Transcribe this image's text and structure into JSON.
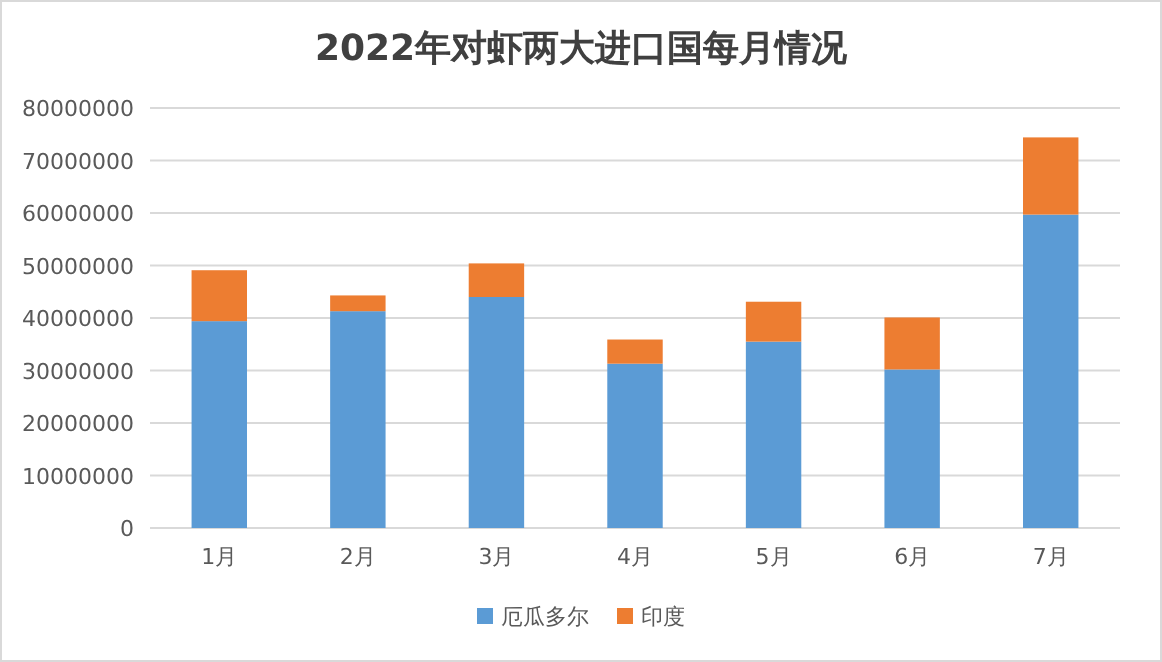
{
  "chart_data": {
    "type": "bar",
    "title": "2022年对虾两大进口国每月情况",
    "stacked": true,
    "grid": "y",
    "legend": "bottom",
    "categories": [
      "1月",
      "2月",
      "3月",
      "4月",
      "5月",
      "6月",
      "7月"
    ],
    "series": [
      {
        "name": "厄瓜多尔",
        "color": "#5b9bd5",
        "values": [
          39400000,
          41300000,
          44000000,
          31300000,
          35500000,
          30200000,
          59700000
        ]
      },
      {
        "name": "印度",
        "color": "#ed7d31",
        "values": [
          9700000,
          3000000,
          6400000,
          4600000,
          7600000,
          9900000,
          14700000
        ]
      }
    ],
    "ylim": [
      0,
      80000000
    ],
    "yticks": [
      0,
      10000000,
      20000000,
      30000000,
      40000000,
      50000000,
      60000000,
      70000000,
      80000000
    ]
  }
}
